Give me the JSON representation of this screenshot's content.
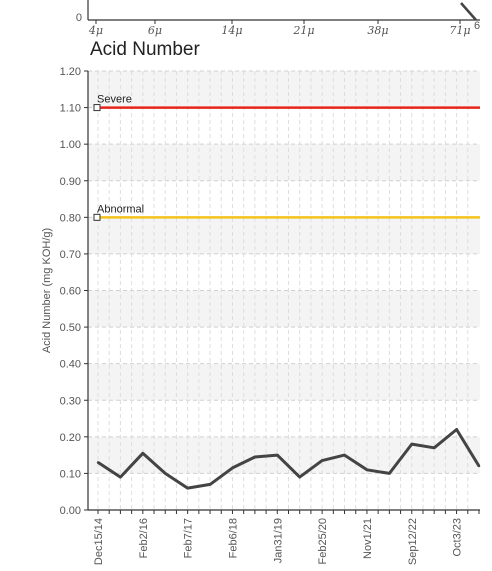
{
  "top_chart": {
    "y_zero_label": "0",
    "x_ticks": [
      "4μ",
      "6μ",
      "14μ",
      "21μ",
      "38μ",
      "71μ"
    ],
    "right_label": "6"
  },
  "chart_data": {
    "type": "line",
    "title": "Acid Number",
    "ylabel": "Acid Number (mg KOH/g)",
    "xlabel": "",
    "ylim": [
      0,
      1.2
    ],
    "y_ticks": [
      "0.00",
      "0.10",
      "0.20",
      "0.30",
      "0.40",
      "0.50",
      "0.60",
      "0.70",
      "0.80",
      "0.90",
      "1.00",
      "1.10",
      "1.20"
    ],
    "x_tick_labels": [
      "Dec15/14",
      "Feb2/16",
      "Feb7/17",
      "Feb6/18",
      "Jan31/19",
      "Feb25/20",
      "Nov1/21",
      "Sep12/22",
      "Oct3/23"
    ],
    "x_tick_indices": [
      0,
      4,
      8,
      12,
      16,
      20,
      24,
      28,
      32
    ],
    "series": [
      {
        "values": [
          0.13,
          0.09,
          0.155,
          0.1,
          0.06,
          0.07,
          0.115,
          0.145,
          0.15,
          0.09,
          0.135,
          0.15,
          0.11,
          0.1,
          0.18,
          0.17,
          0.22,
          0.12
        ],
        "color": "#444444"
      }
    ],
    "thresholds": [
      {
        "name": "Severe",
        "value": 1.1,
        "color": "#e8251b"
      },
      {
        "name": "Abnormal",
        "value": 0.8,
        "color": "#f3c31c"
      }
    ],
    "grid": true
  }
}
